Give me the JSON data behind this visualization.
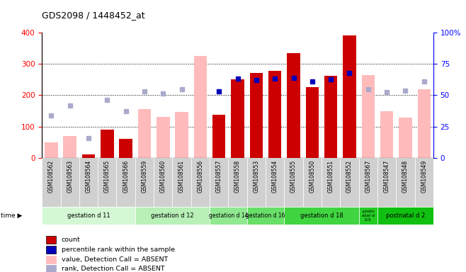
{
  "title": "GDS2098 / 1448452_at",
  "samples": [
    "GSM108562",
    "GSM108563",
    "GSM108564",
    "GSM108565",
    "GSM108566",
    "GSM108559",
    "GSM108560",
    "GSM108561",
    "GSM108556",
    "GSM108557",
    "GSM108558",
    "GSM108553",
    "GSM108554",
    "GSM108555",
    "GSM108550",
    "GSM108551",
    "GSM108552",
    "GSM108567",
    "GSM108547",
    "GSM108548",
    "GSM108549"
  ],
  "count": [
    0,
    0,
    10,
    90,
    60,
    0,
    0,
    0,
    0,
    138,
    250,
    270,
    278,
    335,
    225,
    263,
    390,
    0,
    0,
    0,
    0
  ],
  "value_absent": [
    50,
    70,
    0,
    0,
    0,
    155,
    130,
    147,
    325,
    0,
    0,
    0,
    0,
    0,
    0,
    0,
    0,
    265,
    148,
    128,
    220
  ],
  "rank_absent_left": [
    135,
    167,
    63,
    185,
    148,
    212,
    205,
    220,
    0,
    0,
    0,
    0,
    0,
    0,
    0,
    0,
    0,
    220,
    210,
    215,
    243
  ],
  "percentile_rank_left": [
    0,
    0,
    0,
    0,
    0,
    0,
    0,
    0,
    0,
    213,
    253,
    248,
    253,
    255,
    243,
    250,
    270,
    0,
    0,
    0,
    0
  ],
  "groups": [
    {
      "label": "gestation d 11",
      "start": 0,
      "end": 5
    },
    {
      "label": "gestation d 12",
      "start": 5,
      "end": 9
    },
    {
      "label": "gestation d 14",
      "start": 9,
      "end": 11
    },
    {
      "label": "gestation d 16",
      "start": 11,
      "end": 13
    },
    {
      "label": "gestation d 18",
      "start": 13,
      "end": 17
    },
    {
      "label": "postn\natal d\n0.5",
      "start": 17,
      "end": 18
    },
    {
      "label": "postnatal d 2",
      "start": 18,
      "end": 21
    }
  ],
  "group_colors": [
    "#d4f7d4",
    "#b8f0b8",
    "#90e890",
    "#68df68",
    "#40d540",
    "#22cc22",
    "#10c010"
  ],
  "ylim_left": [
    0,
    400
  ],
  "ylim_right": [
    0,
    100
  ],
  "yticks_left": [
    0,
    100,
    200,
    300,
    400
  ],
  "yticks_right": [
    0,
    25,
    50,
    75,
    100
  ],
  "bar_color_count": "#cc0000",
  "bar_color_absent": "#ffbbbb",
  "dot_color_rank_absent": "#aaaacc",
  "dot_color_percentile": "#0000bb",
  "plot_bg": "#ffffff",
  "axes_bg": "#e8e8e8",
  "grid_color": "#000000",
  "legend_items": [
    "count",
    "percentile rank within the sample",
    "value, Detection Call = ABSENT",
    "rank, Detection Call = ABSENT"
  ],
  "legend_colors": [
    "#cc0000",
    "#0000bb",
    "#ffbbbb",
    "#aaaacc"
  ]
}
